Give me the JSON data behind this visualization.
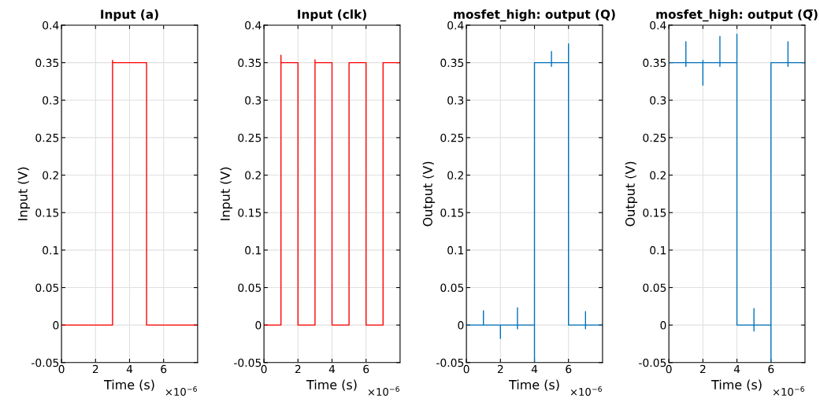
{
  "chart_data": [
    {
      "type": "line",
      "title": "Input (a)",
      "xlabel": "Time (s)",
      "ylabel": "Input (V)",
      "annotations": [
        "×10$^{−6}$"
      ],
      "xlim": [
        0,
        8
      ],
      "xticks": [
        0,
        2,
        4,
        6
      ],
      "ylim": [
        -0.05,
        0.4
      ],
      "yticks": [
        -0.05,
        0,
        0.05,
        0.1,
        0.15,
        0.2,
        0.25,
        0.3,
        0.35,
        0.4
      ],
      "grid": true,
      "series": [
        {
          "color": "#ff0000",
          "x": [
            0,
            3,
            3,
            3,
            5,
            5,
            8
          ],
          "values": [
            0,
            0,
            0.353,
            0.35,
            0.35,
            0,
            0
          ]
        }
      ]
    },
    {
      "type": "line",
      "title": "Input (clk)",
      "xlabel": "Time (s)",
      "ylabel": "Input (V)",
      "annotations": [
        "×10$^{−6}$"
      ],
      "xlim": [
        0,
        8
      ],
      "xticks": [
        0,
        2,
        4,
        6
      ],
      "ylim": [
        -0.05,
        0.4
      ],
      "yticks": [
        -0.05,
        0,
        0.05,
        0.1,
        0.15,
        0.2,
        0.25,
        0.3,
        0.35,
        0.4
      ],
      "grid": true,
      "series": [
        {
          "color": "#ff0000",
          "x": [
            0,
            1,
            1,
            1,
            2,
            2,
            3,
            3,
            3,
            4,
            4,
            5,
            5,
            6,
            6,
            7,
            7,
            8
          ],
          "values": [
            0,
            0,
            0.36,
            0.35,
            0.35,
            0,
            0,
            0.354,
            0.35,
            0.35,
            0,
            0,
            0.35,
            0.35,
            0,
            0,
            0.35,
            0.35
          ]
        }
      ]
    },
    {
      "type": "line",
      "title": "mosfet_high: output (Q)",
      "xlabel": "Time (s)",
      "ylabel": "Output (V)",
      "annotations": [
        "×10$^{−6}$"
      ],
      "xlim": [
        0,
        8
      ],
      "xticks": [
        0,
        2,
        4,
        6
      ],
      "ylim": [
        -0.05,
        0.4
      ],
      "yticks": [
        -0.05,
        0,
        0.05,
        0.1,
        0.15,
        0.2,
        0.25,
        0.3,
        0.35,
        0.4
      ],
      "grid": true,
      "series": [
        {
          "color": "#0072bd",
          "x": [
            0,
            1,
            1,
            1,
            2,
            2,
            2,
            3,
            3,
            3,
            3,
            4,
            4,
            4,
            5,
            5,
            5,
            5,
            6,
            6,
            6,
            6,
            7,
            7,
            7,
            7,
            8
          ],
          "values": [
            0,
            0,
            0.019,
            0,
            0,
            -0.018,
            0,
            0,
            0.023,
            -0.005,
            0,
            0,
            -0.05,
            0.35,
            0.35,
            0.365,
            0.345,
            0.35,
            0.35,
            0.375,
            0.33,
            0,
            0,
            0.018,
            -0.005,
            0,
            0
          ]
        }
      ]
    },
    {
      "type": "line",
      "title": "mosfet_high: output (Q̅)",
      "xlabel": "Time (s)",
      "ylabel": "Output (V)",
      "annotations": [
        "×10$^{−6}$"
      ],
      "xlim": [
        0,
        8
      ],
      "xticks": [
        0,
        2,
        4,
        6
      ],
      "ylim": [
        -0.05,
        0.4
      ],
      "yticks": [
        -0.05,
        0,
        0.05,
        0.1,
        0.15,
        0.2,
        0.25,
        0.3,
        0.35,
        0.4
      ],
      "grid": true,
      "series": [
        {
          "color": "#0072bd",
          "x": [
            0,
            1,
            1,
            1,
            1,
            2,
            2,
            2,
            2,
            3,
            3,
            3,
            3,
            4,
            4,
            4,
            4,
            5,
            5,
            5,
            5,
            6,
            6,
            6,
            7,
            7,
            7,
            7,
            8
          ],
          "values": [
            0.35,
            0.35,
            0.378,
            0.345,
            0.35,
            0.35,
            0.353,
            0.32,
            0.35,
            0.35,
            0.385,
            0.345,
            0.35,
            0.35,
            0.388,
            0.32,
            0,
            0,
            0.022,
            -0.008,
            0,
            0,
            -0.05,
            0.35,
            0.35,
            0.378,
            0.345,
            0.35,
            0.35
          ]
        }
      ]
    }
  ]
}
